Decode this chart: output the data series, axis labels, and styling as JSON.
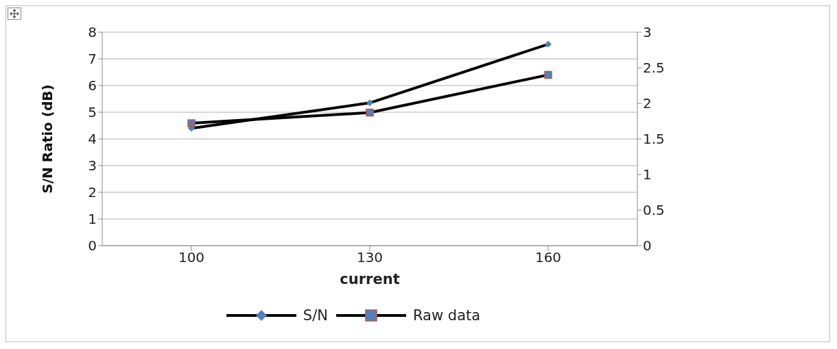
{
  "chart_data": {
    "type": "line",
    "xlabel": "current",
    "ylabel": "S/N Ratio (dB)",
    "categories": [
      "100",
      "130",
      "160"
    ],
    "series": [
      {
        "name": "S/N",
        "color": "#4f81bd",
        "marker": "diamond",
        "values": [
          4.4,
          5.35,
          7.55
        ]
      },
      {
        "name": "Raw data",
        "color": "#4f81bd",
        "marker": "square",
        "axis": "y2",
        "values": [
          1.72,
          1.87,
          2.4
        ]
      }
    ],
    "ylim": [
      0,
      8
    ],
    "yticks": [
      0,
      1,
      2,
      3,
      4,
      5,
      6,
      7,
      8
    ],
    "y2lim": [
      0,
      3
    ],
    "y2ticks": [
      0,
      0.5,
      1,
      1.5,
      2,
      2.5,
      3
    ],
    "grid": "y",
    "legend": "bottom"
  }
}
